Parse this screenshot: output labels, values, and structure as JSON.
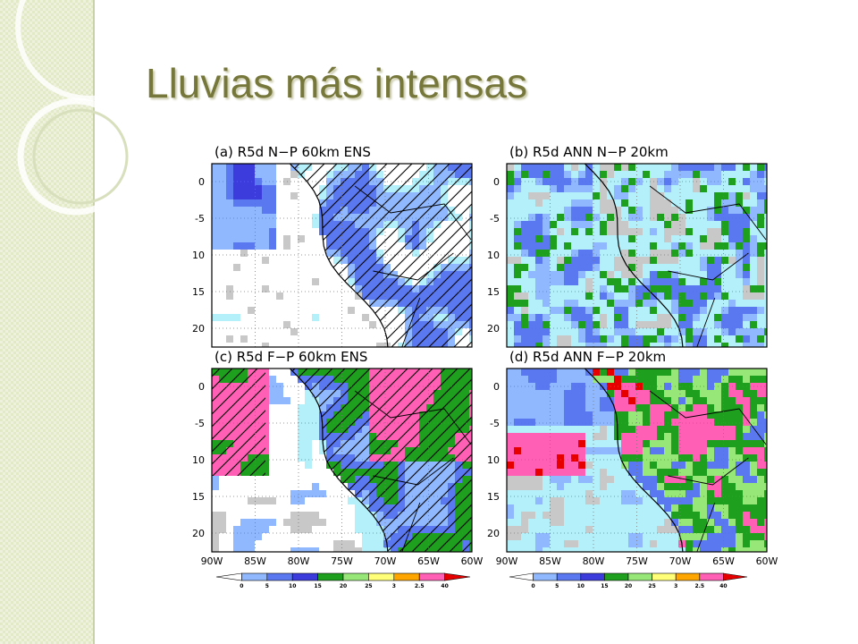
{
  "title": "Lluvias más intensas",
  "panels": [
    {
      "title": "(a) R5d N−P 60km ENS"
    },
    {
      "title": "(b) R5d ANN N−P 20km"
    },
    {
      "title": "(c) R5d F−P 60km ENS"
    },
    {
      "title": "(d) R5d ANN F−P 20km"
    }
  ],
  "lat_labels": [
    "0",
    "-5",
    "10",
    "15",
    "20"
  ],
  "lon_labels": [
    "90W",
    "85W",
    "80W",
    "75W",
    "70W",
    "65W",
    "60W"
  ],
  "colorbar_labels": [
    "0",
    "5",
    "10",
    "15",
    "20",
    "25",
    "3",
    "2.5",
    "40"
  ]
}
